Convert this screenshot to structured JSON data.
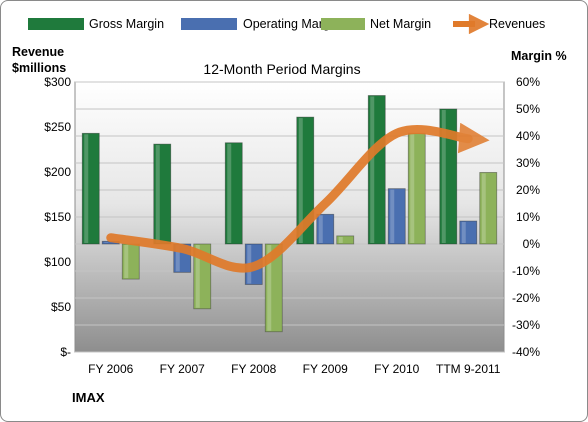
{
  "company": "IMAX",
  "chart_data": {
    "type": "bar",
    "title": "12-Month Period Margins",
    "left_axis": {
      "label_line1": "Revenue",
      "label_line2": "$millions",
      "ylim": [
        0,
        300
      ],
      "ticks": [
        "$-",
        "$50",
        "$100",
        "$150",
        "$200",
        "$250",
        "$300"
      ]
    },
    "right_axis": {
      "label": "Margin %",
      "ylim": [
        -40,
        60
      ],
      "ticks": [
        "-40%",
        "-30%",
        "-20%",
        "-10%",
        "0%",
        "10%",
        "20%",
        "30%",
        "40%",
        "50%",
        "60%"
      ]
    },
    "categories": [
      "FY 2006",
      "FY 2007",
      "FY 2008",
      "FY 2009",
      "FY 2010",
      "TTM 9-2011"
    ],
    "series": [
      {
        "name": "Gross Margin",
        "type": "bar",
        "axis": "right",
        "color": "#1f7a3c",
        "values": [
          41,
          37,
          37.5,
          47,
          55,
          50
        ]
      },
      {
        "name": "Operating Margin",
        "type": "bar",
        "axis": "right",
        "color": "#4a6fb0",
        "values": [
          1,
          -10.5,
          -15,
          11,
          20.5,
          8.5
        ]
      },
      {
        "name": "Net Margin",
        "type": "bar",
        "axis": "right",
        "color": "#8db25a",
        "values": [
          -13,
          -24,
          -32.5,
          3,
          41,
          26.5
        ]
      },
      {
        "name": "Revenues",
        "type": "line",
        "axis": "left",
        "color": "#e07a2a",
        "values": [
          127,
          115,
          95,
          165,
          243,
          237
        ]
      }
    ],
    "legend_position": "top",
    "grid": true
  }
}
